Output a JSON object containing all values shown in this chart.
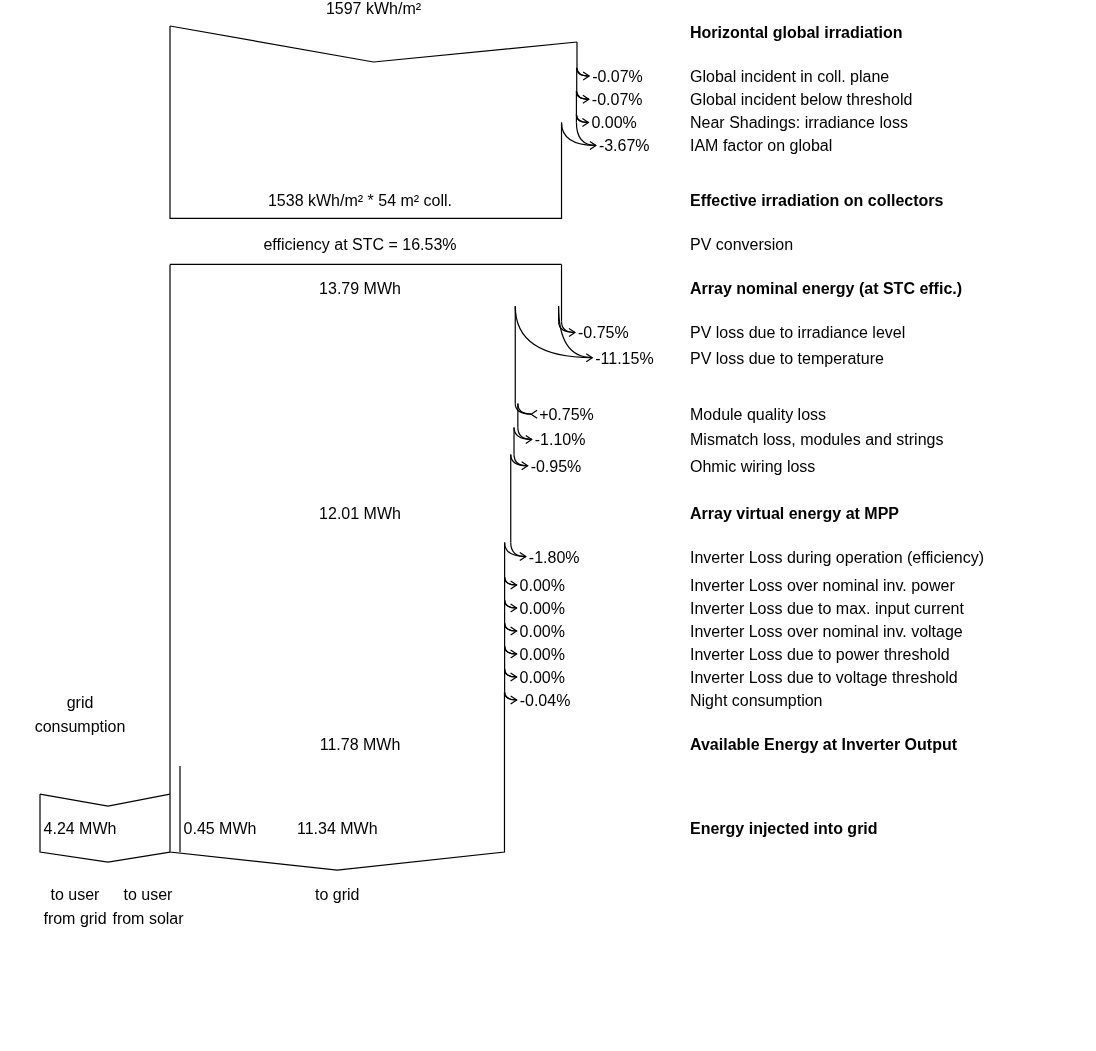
{
  "chart_data": {
    "type": "other",
    "categories": [
      "Horizontal global irradiation",
      "Global incident in coll. plane",
      "Global incident below threshold",
      "Near Shadings: irradiance loss",
      "IAM factor on global",
      "Effective irradiation on collectors",
      "PV conversion",
      "Array nominal energy (at STC effic.)",
      "PV loss due to irradiance level",
      "PV loss due to temperature",
      "Module quality loss",
      "Mismatch loss, modules and strings",
      "Ohmic wiring loss",
      "Array virtual energy at MPP",
      "Inverter Loss during operation (efficiency)",
      "Inverter Loss over nominal inv. power",
      "Inverter Loss due to max. input current",
      "Inverter Loss over nominal inv. voltage",
      "Inverter Loss due to power threshold",
      "Inverter Loss due to voltage threshold",
      "Night consumption",
      "Available Energy at Inverter Output",
      "Energy injected into grid"
    ],
    "values": [
      null,
      -0.07,
      -0.07,
      0,
      -3.67,
      null,
      16.53,
      null,
      -0.75,
      -11.15,
      0.75,
      -1.1,
      -0.95,
      null,
      -1.8,
      0,
      0,
      0,
      0,
      0,
      -0.04,
      null,
      null
    ],
    "value_labels": [
      "1597 kWh/m²",
      "-0.07%",
      "-0.07%",
      "0.00%",
      "-3.67%",
      "1538 kWh/m² * 54 m² coll.",
      "efficiency at STC = 16.53%",
      "13.79 MWh",
      "-0.75%",
      "-11.15%",
      "+0.75%",
      "-1.10%",
      "-0.95%",
      "12.01 MWh",
      "-1.80%",
      "0.00%",
      "0.00%",
      "0.00%",
      "0.00%",
      "0.00%",
      "-0.04%",
      "11.78 MWh",
      "11.34 MWh"
    ],
    "annotations": [
      "grid consumption",
      "4.24 MWh",
      "0.45 MWh",
      "to user from grid",
      "to user from solar",
      "to grid"
    ]
  }
}
